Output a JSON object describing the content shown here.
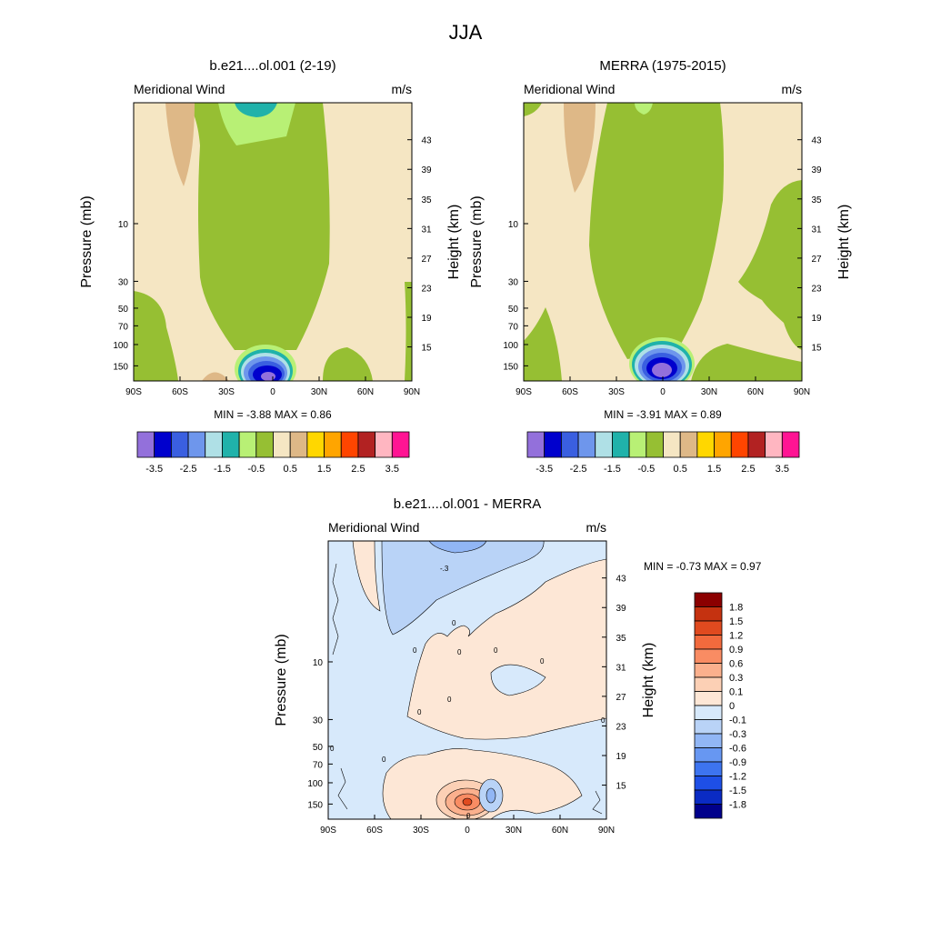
{
  "title": "JJA",
  "colors": {
    "panel_levels": [
      "#9370db",
      "#0000cd",
      "#3a5fe0",
      "#6e96ec",
      "#afe0e6",
      "#20b2aa",
      "#b8f075",
      "#96bf33",
      "#f5e6c3",
      "#deb887",
      "#ffd700",
      "#ffa500",
      "#ff4500",
      "#b22222",
      "#ffb6c1",
      "#ff1493"
    ],
    "diff_levels": [
      "#00008b",
      "#0a2bc4",
      "#1e4fe6",
      "#3d74f0",
      "#6797f2",
      "#91b6f5",
      "#b9d3f7",
      "#d7e9fb",
      "#fde7d6",
      "#fcd0b5",
      "#fbb08d",
      "#f98c63",
      "#f26a3d",
      "#e04a1f",
      "#c53210",
      "#8b0000"
    ]
  },
  "chart_data": [
    {
      "type": "heatmap",
      "title": "b.e21....ol.001 (2-19)",
      "left_label": "Meridional Wind",
      "right_label": "m/s",
      "xlabel": "",
      "ylabel": "Pressure (mb)",
      "y2label": "Height (km)",
      "x_ticks": [
        "90S",
        "60S",
        "30S",
        "0",
        "30N",
        "60N",
        "90N"
      ],
      "y_ticks": [
        "10",
        "30",
        "50",
        "70",
        "100",
        "150"
      ],
      "y2_ticks": [
        "43",
        "39",
        "35",
        "31",
        "27",
        "23",
        "19",
        "15"
      ],
      "stats": "MIN =  -3.88  MAX =   0.86",
      "colorbar_labels": [
        "-3.5",
        "-2.5",
        "-1.5",
        "-0.5",
        "0.5",
        "1.5",
        "2.5",
        "3.5"
      ],
      "grid": false
    },
    {
      "type": "heatmap",
      "title": "MERRA (1975-2015)",
      "left_label": "Meridional Wind",
      "right_label": "m/s",
      "xlabel": "",
      "ylabel": "Pressure (mb)",
      "y2label": "Height (km)",
      "x_ticks": [
        "90S",
        "60S",
        "30S",
        "0",
        "30N",
        "60N",
        "90N"
      ],
      "y_ticks": [
        "10",
        "30",
        "50",
        "70",
        "100",
        "150"
      ],
      "y2_ticks": [
        "43",
        "39",
        "35",
        "31",
        "27",
        "23",
        "19",
        "15"
      ],
      "stats": "MIN =  -3.91  MAX =   0.89",
      "colorbar_labels": [
        "-3.5",
        "-2.5",
        "-1.5",
        "-0.5",
        "0.5",
        "1.5",
        "2.5",
        "3.5"
      ],
      "grid": false
    },
    {
      "type": "heatmap",
      "title": "b.e21....ol.001 - MERRA",
      "left_label": "Meridional Wind",
      "right_label": "m/s",
      "xlabel": "",
      "ylabel": "Pressure (mb)",
      "y2label": "Height (km)",
      "x_ticks": [
        "90S",
        "60S",
        "30S",
        "0",
        "30N",
        "60N",
        "90N"
      ],
      "y_ticks": [
        "10",
        "30",
        "50",
        "70",
        "100",
        "150"
      ],
      "y2_ticks": [
        "43",
        "39",
        "35",
        "31",
        "27",
        "23",
        "19",
        "15"
      ],
      "stats": "MIN =  -0.73  MAX =   0.97",
      "colorbar_labels": [
        "1.8",
        "1.5",
        "1.2",
        "0.9",
        "0.6",
        "0.3",
        "0.1",
        "0",
        "-0.1",
        "-0.3",
        "-0.6",
        "-0.9",
        "-1.2",
        "-1.5",
        "-1.8"
      ],
      "contour_labels": [
        "-.3",
        "0",
        "0",
        "0",
        "0",
        "0",
        "0",
        "0",
        "0",
        "0",
        "0",
        "0"
      ],
      "grid": false
    }
  ]
}
